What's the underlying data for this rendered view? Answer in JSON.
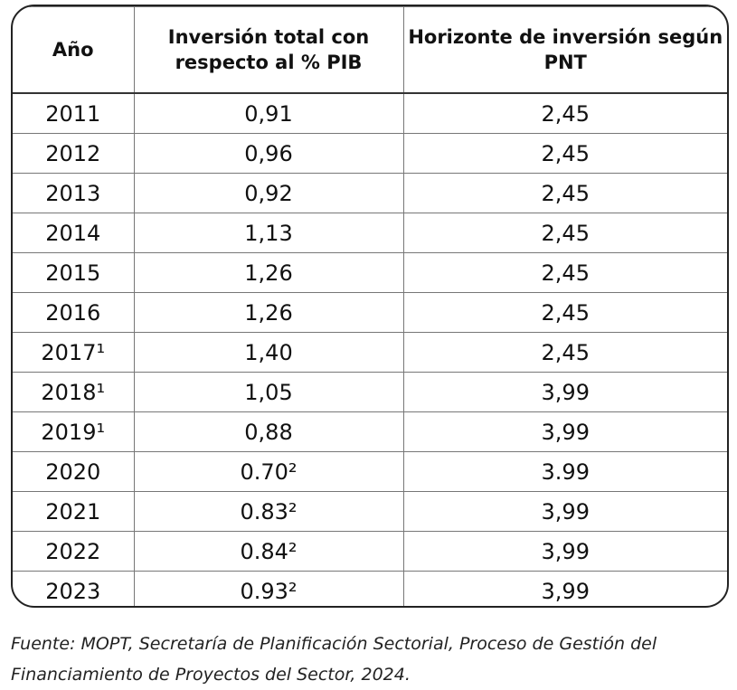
{
  "table": {
    "header": [
      "Año",
      "Inversión total con respecto al % PIB",
      "Horizonte de inversión según PNT"
    ],
    "rows": [
      [
        "2011",
        "0,91",
        "2,45"
      ],
      [
        "2012",
        "0,96",
        "2,45"
      ],
      [
        "2013",
        "0,92",
        "2,45"
      ],
      [
        "2014",
        "1,13",
        "2,45"
      ],
      [
        "2015",
        "1,26",
        "2,45"
      ],
      [
        "2016",
        "1,26",
        "2,45"
      ],
      [
        "2017¹",
        "1,40",
        "2,45"
      ],
      [
        "2018¹",
        "1,05",
        "3,99"
      ],
      [
        "2019¹",
        "0,88",
        "3,99"
      ],
      [
        "2020",
        "0.70²",
        "3.99"
      ],
      [
        "2021",
        "0.83²",
        "3,99"
      ],
      [
        "2022",
        "0.84²",
        "3,99"
      ],
      [
        "2023",
        "0.93²",
        "3,99"
      ]
    ]
  },
  "footer": {
    "lines": [
      "Fuente: MOPT, Secretaría de Planificación Sectorial, Proceso de Gestión del",
      "Financiamiento de Proyectos del Sector, 2024."
    ]
  }
}
